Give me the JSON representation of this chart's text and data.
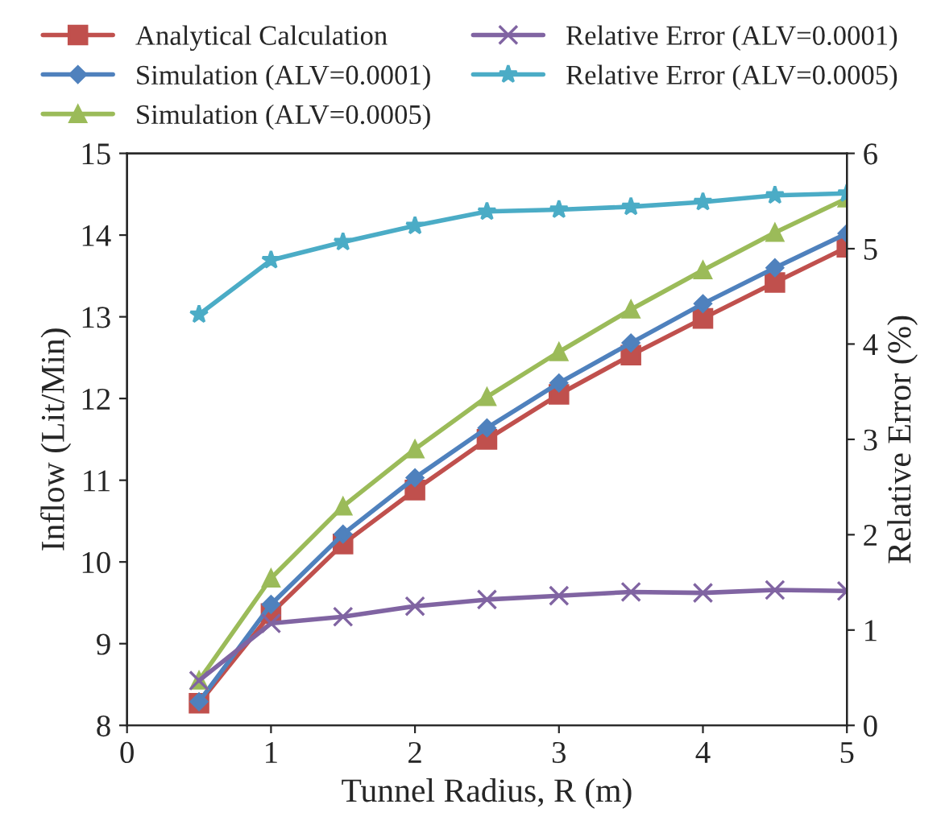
{
  "chart_data": {
    "type": "line",
    "xlabel": "Tunnel Radius, R (m)",
    "ylabel": "Inflow (Lit/Min)",
    "y2label": "Relative Error (%)",
    "x": [
      0.5,
      1,
      1.5,
      2,
      2.5,
      3,
      3.5,
      4,
      4.5,
      5
    ],
    "xlim": [
      0,
      5
    ],
    "xticks": [
      0,
      1,
      2,
      3,
      4,
      5
    ],
    "ylim": [
      8,
      15
    ],
    "yticks": [
      8,
      9,
      10,
      11,
      12,
      13,
      14,
      15
    ],
    "y2lim": [
      0,
      6
    ],
    "y2ticks": [
      0,
      1,
      2,
      3,
      4,
      5,
      6
    ],
    "grid": false,
    "legend": "top",
    "series": [
      {
        "name": "Analytical Calculation",
        "color": "#c0504d",
        "marker": "square",
        "values": [
          8.27,
          9.37,
          10.22,
          10.88,
          11.5,
          12.05,
          12.53,
          12.98,
          13.42,
          13.85
        ]
      },
      {
        "name": "Simulation (ALV=0.0001)",
        "color": "#4f81bd",
        "marker": "diamond",
        "values": [
          8.29,
          9.48,
          10.34,
          11.03,
          11.64,
          12.19,
          12.68,
          13.16,
          13.6,
          14.02
        ]
      },
      {
        "name": "Simulation (ALV=0.0005)",
        "color": "#9bbb59",
        "marker": "triangle",
        "values": [
          8.55,
          9.8,
          10.68,
          11.38,
          12.02,
          12.57,
          13.09,
          13.57,
          14.03,
          14.45
        ]
      },
      {
        "name": "Relative Error (ALV=0.0001)",
        "color": "#8064a2",
        "marker": "cross",
        "axis": "y2",
        "values": [
          0.47,
          1.07,
          1.14,
          1.25,
          1.32,
          1.36,
          1.4,
          1.39,
          1.42,
          1.41
        ]
      },
      {
        "name": "Relative Error (ALV=0.0005)",
        "color": "#4bacc6",
        "marker": "star",
        "axis": "y2",
        "values": [
          4.31,
          4.88,
          5.07,
          5.24,
          5.39,
          5.41,
          5.44,
          5.49,
          5.56,
          5.58
        ]
      }
    ]
  }
}
